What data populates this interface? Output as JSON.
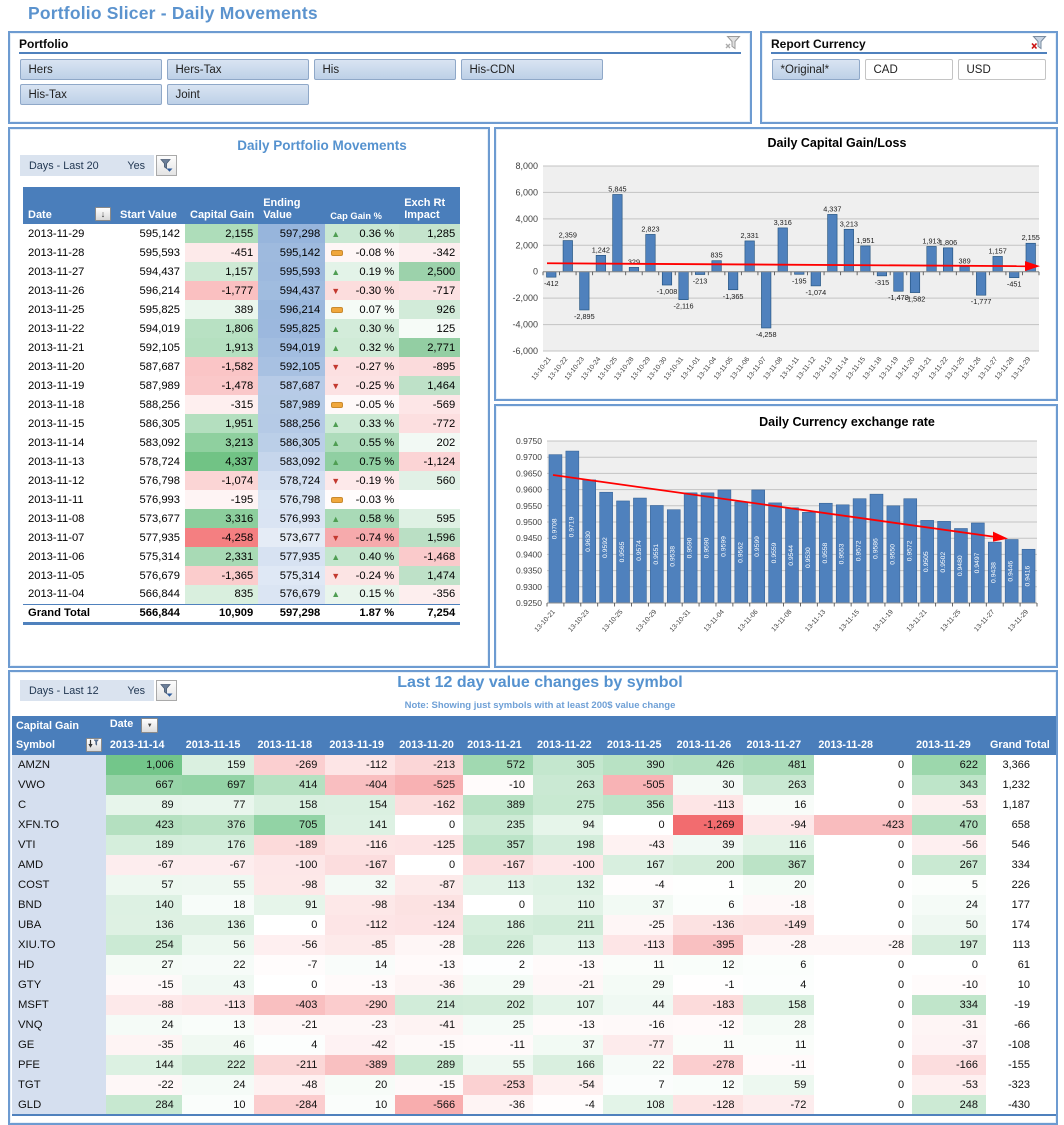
{
  "page_title": "Portfolio Slicer - Daily Movements",
  "icons": {
    "clear_filter": "funnel-with-x",
    "filter_dropdown": "funnel-with-chevron-down",
    "sort": "arrow-down",
    "dropdown": "chevron-down",
    "trend_up": "green-triangle-up",
    "trend_down": "red-triangle-down",
    "trend_flat": "amber-dash"
  },
  "colors": {
    "accent_blue": "#4A7EBB",
    "title_blue": "#5B93CE",
    "bar_blue": "#4F81BD",
    "positive_green": "#58BB74",
    "negative_red": "#F26B6E",
    "trend_red": "#FF0000"
  },
  "slicers": {
    "portfolio": {
      "title": "Portfolio",
      "filter_active": false,
      "items": [
        {
          "label": "Hers",
          "selected": true
        },
        {
          "label": "Hers-Tax",
          "selected": true
        },
        {
          "label": "His",
          "selected": true
        },
        {
          "label": "His-CDN",
          "selected": true
        },
        {
          "label": "His-Tax",
          "selected": true
        },
        {
          "label": "Joint",
          "selected": true
        }
      ]
    },
    "currency": {
      "title": "Report Currency",
      "filter_active": true,
      "items": [
        {
          "label": "*Original*",
          "selected": true
        },
        {
          "label": "CAD",
          "selected": false
        },
        {
          "label": "USD",
          "selected": false
        }
      ]
    }
  },
  "movements": {
    "filter_label": "Days - Last 20",
    "filter_value": "Yes",
    "title": "Daily Portfolio Movements",
    "columns": [
      "Date",
      "Start Value",
      "Capital Gain",
      "Ending Value",
      "Cap Gain %",
      "Exch Rt Impact"
    ],
    "row_format": [
      "date",
      "start_value",
      "capital_gain",
      "ending_value",
      "trend_icon",
      "cap_gain_pct",
      "exch_rt_impact"
    ],
    "rows": [
      [
        "2013-11-29",
        595142,
        2155,
        597298,
        "up",
        0.36,
        1285
      ],
      [
        "2013-11-28",
        595593,
        -451,
        595142,
        "flat",
        -0.08,
        -342
      ],
      [
        "2013-11-27",
        594437,
        1157,
        595593,
        "up",
        0.19,
        2500
      ],
      [
        "2013-11-26",
        596214,
        -1777,
        594437,
        "down",
        -0.3,
        -717
      ],
      [
        "2013-11-25",
        595825,
        389,
        596214,
        "flat",
        0.07,
        926
      ],
      [
        "2013-11-22",
        594019,
        1806,
        595825,
        "up",
        0.3,
        125
      ],
      [
        "2013-11-21",
        592105,
        1913,
        594019,
        "up",
        0.32,
        2771
      ],
      [
        "2013-11-20",
        587687,
        -1582,
        592105,
        "down",
        -0.27,
        -895
      ],
      [
        "2013-11-19",
        587989,
        -1478,
        587687,
        "down",
        -0.25,
        1464
      ],
      [
        "2013-11-18",
        588256,
        -315,
        587989,
        "flat",
        -0.05,
        -569
      ],
      [
        "2013-11-15",
        586305,
        1951,
        588256,
        "up",
        0.33,
        -772
      ],
      [
        "2013-11-14",
        583092,
        3213,
        586305,
        "up",
        0.55,
        202
      ],
      [
        "2013-11-13",
        578724,
        4337,
        583092,
        "up",
        0.75,
        -1124
      ],
      [
        "2013-11-12",
        576798,
        -1074,
        578724,
        "down",
        -0.19,
        560
      ],
      [
        "2013-11-11",
        576993,
        -195,
        576798,
        "flat",
        -0.03,
        null
      ],
      [
        "2013-11-08",
        573677,
        3316,
        576993,
        "up",
        0.58,
        595
      ],
      [
        "2013-11-07",
        577935,
        -4258,
        573677,
        "down",
        -0.74,
        1596
      ],
      [
        "2013-11-06",
        575314,
        2331,
        577935,
        "up",
        0.4,
        -1468
      ],
      [
        "2013-11-05",
        576679,
        -1365,
        575314,
        "down",
        -0.24,
        1474
      ],
      [
        "2013-11-04",
        566844,
        835,
        576679,
        "up",
        0.15,
        -356
      ]
    ],
    "grand_total": [
      "Grand Total",
      566844,
      10909,
      597298,
      "",
      1.87,
      7254
    ]
  },
  "chart_data": [
    {
      "type": "bar",
      "title": "Daily Capital Gain/Loss",
      "x": [
        "13-10-21",
        "13-10-22",
        "13-10-23",
        "13-10-24",
        "13-10-25",
        "13-10-28",
        "13-10-29",
        "13-10-30",
        "13-10-31",
        "13-11-01",
        "13-11-04",
        "13-11-05",
        "13-11-06",
        "13-11-07",
        "13-11-08",
        "13-11-11",
        "13-11-12",
        "13-11-13",
        "13-11-14",
        "13-11-15",
        "13-11-18",
        "13-11-19",
        "13-11-20",
        "13-11-21",
        "13-11-22",
        "13-11-25",
        "13-11-26",
        "13-11-27",
        "13-11-28",
        "13-11-29"
      ],
      "values": [
        -412,
        2359,
        -2895,
        1242,
        5845,
        329,
        2823,
        -1008,
        -2116,
        -213,
        835,
        -1365,
        2331,
        -4258,
        3316,
        -195,
        -1074,
        4337,
        3213,
        1951,
        -315,
        -1478,
        -1582,
        1913,
        1806,
        389,
        -1777,
        1157,
        -451,
        2155
      ],
      "ylim": [
        -6000,
        8000
      ],
      "ytick_step": 2000,
      "grid": true,
      "data_labels": true,
      "legend": "none",
      "trend_arrow": {
        "from": 640,
        "to": 420
      }
    },
    {
      "type": "bar",
      "title": "Daily Currency exchange rate",
      "x": [
        "13-10-21",
        "13-10-22",
        "13-10-23",
        "13-10-24",
        "13-10-25",
        "13-10-28",
        "13-10-29",
        "13-10-30",
        "13-10-31",
        "13-11-01",
        "13-11-04",
        "13-11-05",
        "13-11-06",
        "13-11-07",
        "13-11-08",
        "13-11-12",
        "13-11-13",
        "13-11-14",
        "13-11-15",
        "13-11-18",
        "13-11-19",
        "13-11-20",
        "13-11-21",
        "13-11-22",
        "13-11-25",
        "13-11-26",
        "13-11-27",
        "13-11-28",
        "13-11-29"
      ],
      "values": [
        0.9708,
        0.9719,
        0.963,
        0.9592,
        0.9565,
        0.9574,
        0.9551,
        0.9538,
        0.959,
        0.959,
        0.9599,
        0.9562,
        0.9599,
        0.9559,
        0.9544,
        0.953,
        0.9558,
        0.9553,
        0.9572,
        0.9586,
        0.955,
        0.9572,
        0.9505,
        0.9502,
        0.948,
        0.9497,
        0.9438,
        0.9446,
        0.9416
      ],
      "ylim": [
        0.925,
        0.975
      ],
      "ytick_step": 0.005,
      "grid": true,
      "data_labels": true,
      "label_style": "inside-vertical-white",
      "x_label_every": 2,
      "legend": "none",
      "trend_arrow": {
        "from": 0.9645,
        "to": 0.9455
      }
    }
  ],
  "matrix": {
    "filter_label": "Days - Last 12",
    "filter_value": "Yes",
    "title": "Last 12 day value changes by symbol",
    "note": "Note: Showing just symbols with at least 200$ value change",
    "corner_measure": "Capital Gain",
    "corner_date": "Date",
    "corner_symbol": "Symbol",
    "grand_total_label": "Grand Total",
    "columns": [
      "2013-11-14",
      "2013-11-15",
      "2013-11-18",
      "2013-11-19",
      "2013-11-20",
      "2013-11-21",
      "2013-11-22",
      "2013-11-25",
      "2013-11-26",
      "2013-11-27",
      "2013-11-28",
      "2013-11-29"
    ],
    "rows": [
      {
        "symbol": "AMZN",
        "values": [
          1006,
          159,
          -269,
          -112,
          -213,
          572,
          305,
          390,
          426,
          481,
          0,
          622
        ],
        "total": 3366
      },
      {
        "symbol": "VWO",
        "values": [
          667,
          697,
          414,
          -404,
          -525,
          -10,
          263,
          -505,
          30,
          263,
          0,
          343
        ],
        "total": 1232
      },
      {
        "symbol": "C",
        "values": [
          89,
          77,
          158,
          154,
          -162,
          389,
          275,
          356,
          -113,
          16,
          0,
          -53
        ],
        "total": 1187
      },
      {
        "symbol": "XFN.TO",
        "values": [
          423,
          376,
          705,
          141,
          0,
          235,
          94,
          0,
          -1269,
          -94,
          -423,
          470
        ],
        "total": 658
      },
      {
        "symbol": "VTI",
        "values": [
          189,
          176,
          -189,
          -116,
          -125,
          357,
          198,
          -43,
          39,
          116,
          0,
          -56
        ],
        "total": 546
      },
      {
        "symbol": "AMD",
        "values": [
          -67,
          -67,
          -100,
          -167,
          0,
          -167,
          -100,
          167,
          200,
          367,
          0,
          267
        ],
        "total": 334
      },
      {
        "symbol": "COST",
        "values": [
          57,
          55,
          -98,
          32,
          -87,
          113,
          132,
          -4,
          1,
          20,
          0,
          5
        ],
        "total": 226
      },
      {
        "symbol": "BND",
        "values": [
          140,
          18,
          91,
          -98,
          -134,
          0,
          110,
          37,
          6,
          -18,
          0,
          24
        ],
        "total": 177
      },
      {
        "symbol": "UBA",
        "values": [
          136,
          136,
          0,
          -112,
          -124,
          186,
          211,
          -25,
          -136,
          -149,
          0,
          50
        ],
        "total": 174
      },
      {
        "symbol": "XIU.TO",
        "values": [
          254,
          56,
          -56,
          -85,
          -28,
          226,
          113,
          -113,
          -395,
          -28,
          -28,
          197
        ],
        "total": 113
      },
      {
        "symbol": "HD",
        "values": [
          27,
          22,
          -7,
          14,
          -13,
          2,
          -13,
          11,
          12,
          6,
          0,
          0
        ],
        "total": 61
      },
      {
        "symbol": "GTY",
        "values": [
          -15,
          43,
          0,
          -13,
          -36,
          29,
          -21,
          29,
          -1,
          4,
          0,
          -10
        ],
        "total": 10
      },
      {
        "symbol": "MSFT",
        "values": [
          -88,
          -113,
          -403,
          -290,
          214,
          202,
          107,
          44,
          -183,
          158,
          0,
          334
        ],
        "total": -19
      },
      {
        "symbol": "VNQ",
        "values": [
          24,
          13,
          -21,
          -23,
          -41,
          25,
          -13,
          -16,
          -12,
          28,
          0,
          -31
        ],
        "total": -66
      },
      {
        "symbol": "GE",
        "values": [
          -35,
          46,
          4,
          -42,
          -15,
          -11,
          37,
          -77,
          11,
          11,
          0,
          -37
        ],
        "total": -108
      },
      {
        "symbol": "PFE",
        "values": [
          144,
          222,
          -211,
          -389,
          289,
          55,
          166,
          22,
          -278,
          -11,
          0,
          -166
        ],
        "total": -155
      },
      {
        "symbol": "TGT",
        "values": [
          -22,
          24,
          -48,
          20,
          -15,
          -253,
          -54,
          7,
          12,
          59,
          0,
          -53
        ],
        "total": -323
      },
      {
        "symbol": "GLD",
        "values": [
          284,
          10,
          -284,
          10,
          -566,
          -36,
          -4,
          108,
          -128,
          -72,
          0,
          248
        ],
        "total": -430
      }
    ]
  }
}
